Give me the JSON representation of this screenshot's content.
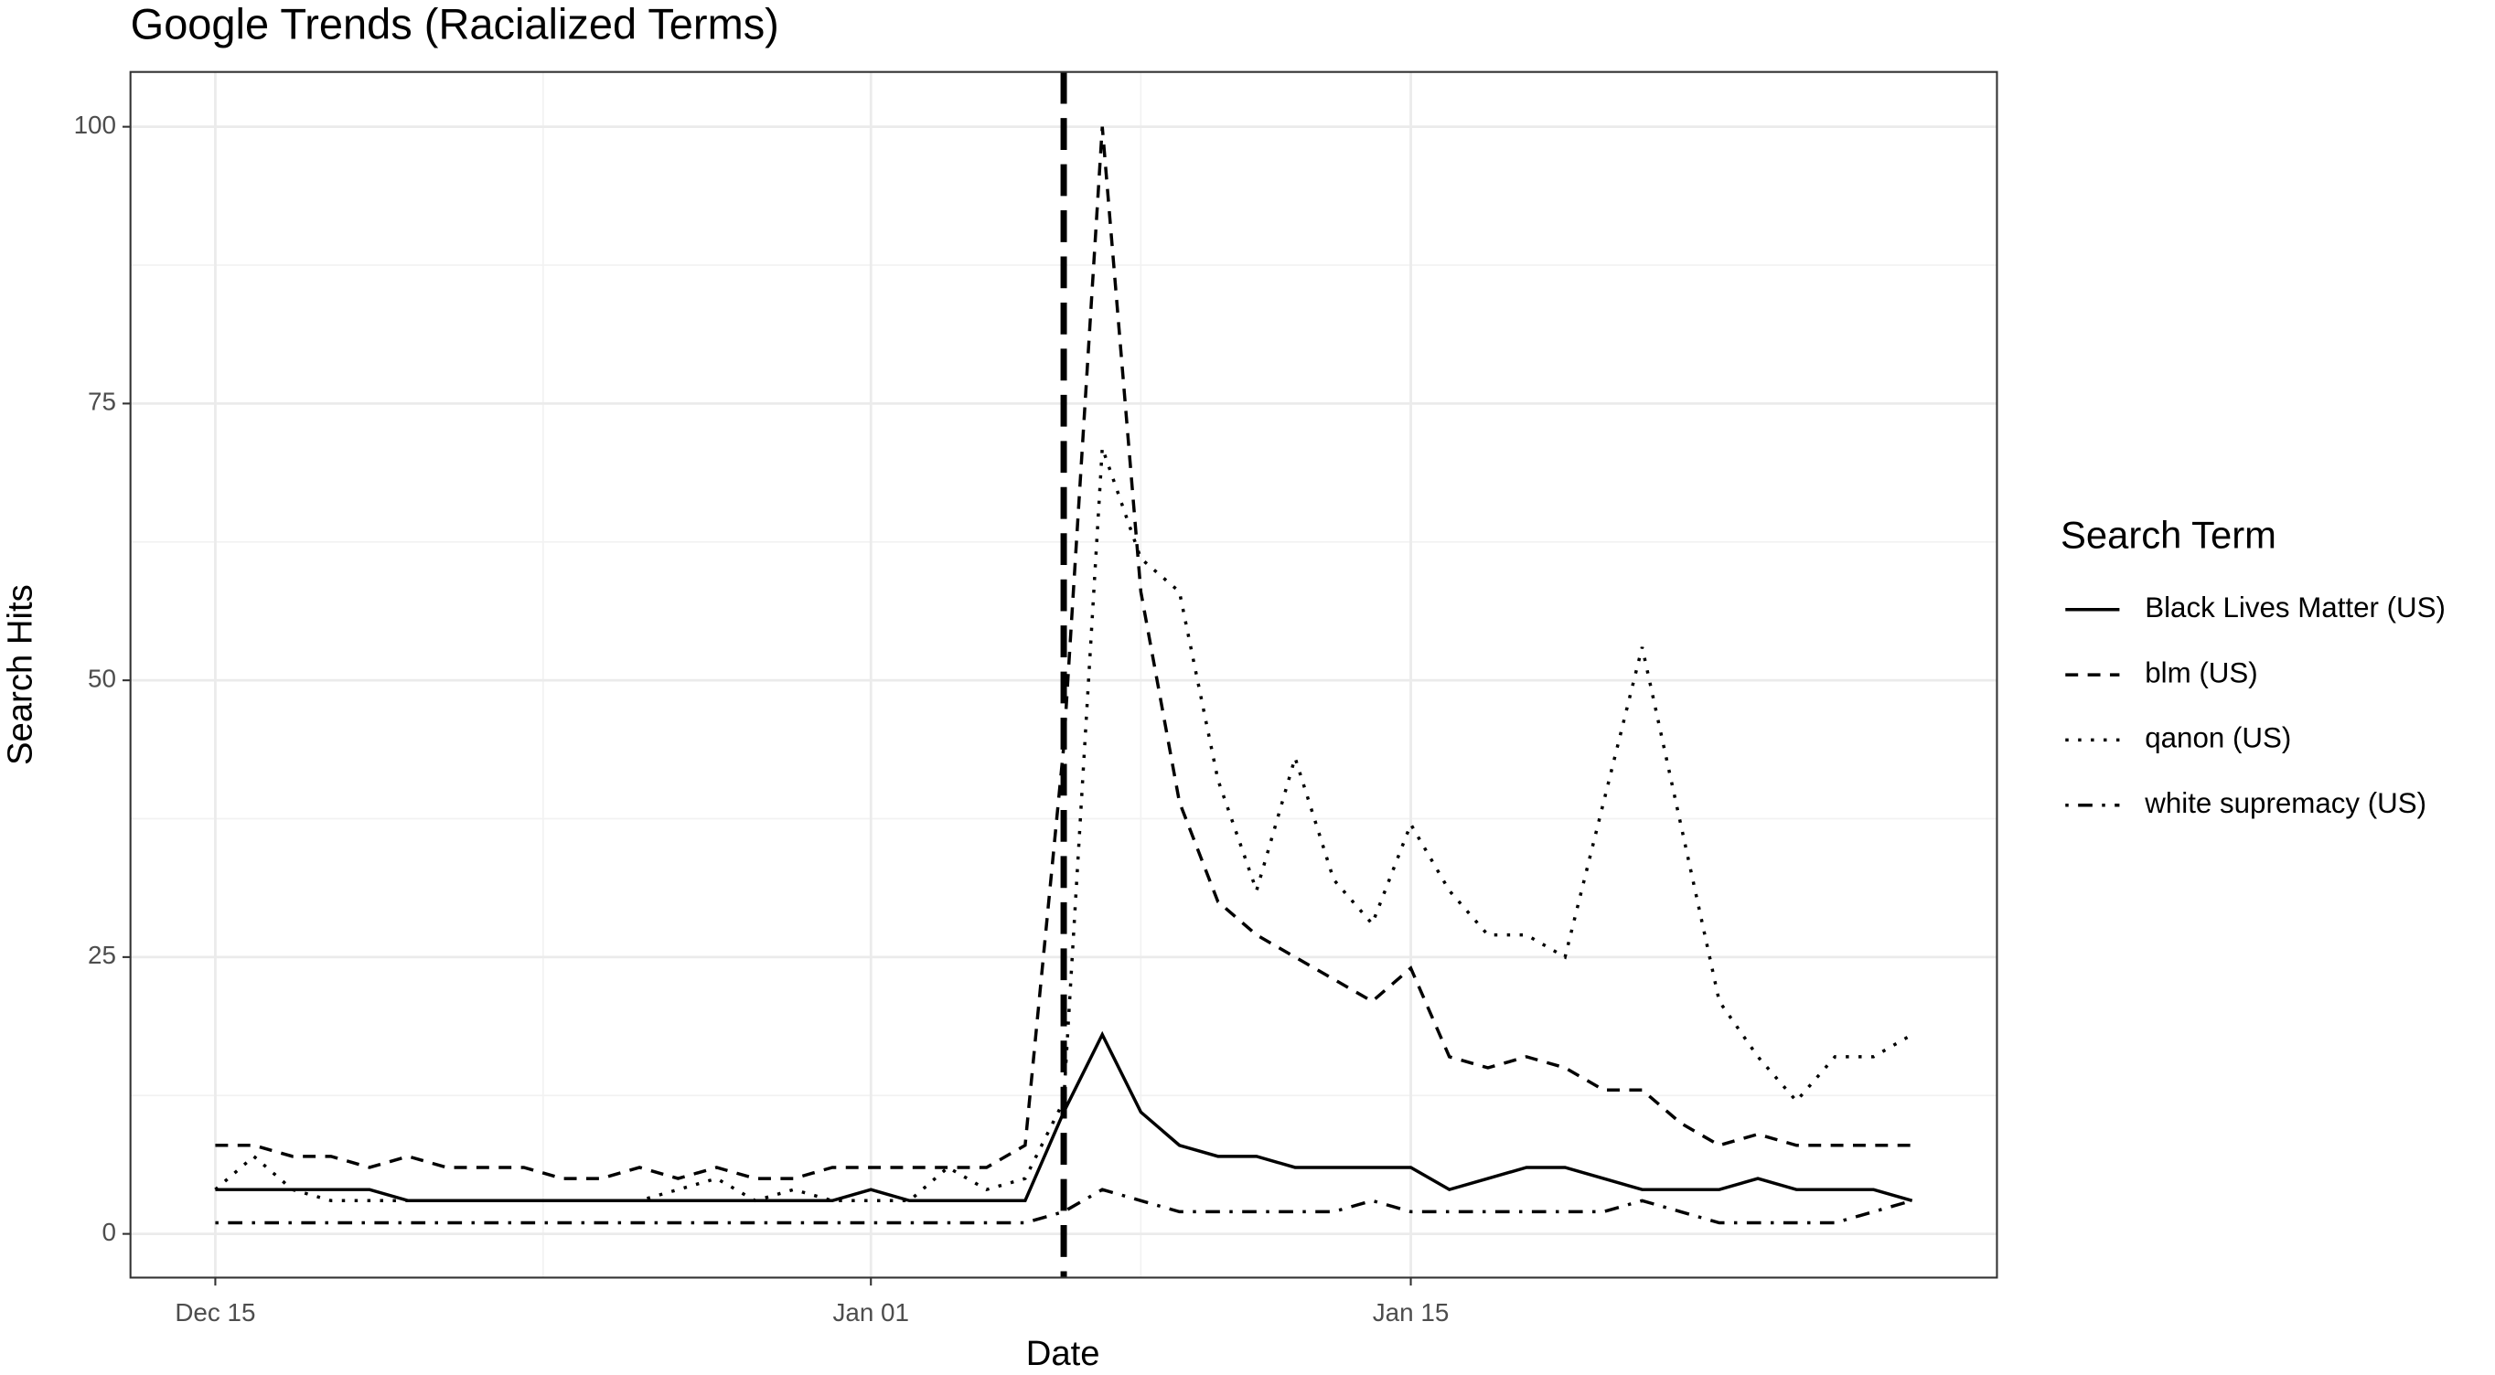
{
  "chart_data": {
    "type": "line",
    "title": "Google Trends (Racialized Terms)",
    "x_label": "Date",
    "y_label": "Search Hits",
    "legend_title": "Search Term",
    "legend_position": "right",
    "grid": true,
    "x": [
      "Dec 15",
      "Dec 16",
      "Dec 17",
      "Dec 18",
      "Dec 19",
      "Dec 20",
      "Dec 21",
      "Dec 22",
      "Dec 23",
      "Dec 24",
      "Dec 25",
      "Dec 26",
      "Dec 27",
      "Dec 28",
      "Dec 29",
      "Dec 30",
      "Dec 31",
      "Jan 01",
      "Jan 02",
      "Jan 03",
      "Jan 04",
      "Jan 05",
      "Jan 06",
      "Jan 07",
      "Jan 08",
      "Jan 09",
      "Jan 10",
      "Jan 11",
      "Jan 12",
      "Jan 13",
      "Jan 14",
      "Jan 15",
      "Jan 16",
      "Jan 17",
      "Jan 18",
      "Jan 19",
      "Jan 20",
      "Jan 21",
      "Jan 22",
      "Jan 23",
      "Jan 24",
      "Jan 25",
      "Jan 26",
      "Jan 27",
      "Jan 28"
    ],
    "xticks": [
      "Dec 15",
      "Jan 01",
      "Jan 15"
    ],
    "ylim": [
      -3.95,
      104.95
    ],
    "yticks": [
      0,
      25,
      50,
      75,
      100
    ],
    "vline": {
      "x": "Jan 06",
      "style": "dashed",
      "color": "#000000"
    },
    "series": [
      {
        "name": "Black Lives Matter (US)",
        "color": "#000000",
        "dash": "solid",
        "values": [
          4,
          4,
          4,
          4,
          4,
          3,
          3,
          3,
          3,
          3,
          3,
          3,
          3,
          3,
          3,
          3,
          3,
          4,
          3,
          3,
          3,
          3,
          11,
          18,
          11,
          8,
          7,
          7,
          6,
          6,
          6,
          6,
          4,
          5,
          6,
          6,
          5,
          4,
          4,
          4,
          5,
          4,
          4,
          4,
          3
        ]
      },
      {
        "name": "blm (US)",
        "color": "#000000",
        "dash": "dashed",
        "values": [
          8,
          8,
          7,
          7,
          6,
          7,
          6,
          6,
          6,
          5,
          5,
          6,
          5,
          6,
          5,
          5,
          6,
          6,
          6,
          6,
          6,
          8,
          44,
          100,
          58,
          39,
          30,
          27,
          25,
          23,
          21,
          24,
          16,
          15,
          16,
          15,
          13,
          13,
          10,
          8,
          9,
          8,
          8,
          8,
          8
        ]
      },
      {
        "name": "qanon (US)",
        "color": "#000000",
        "dash": "dotted",
        "values": [
          4,
          7,
          4,
          3,
          3,
          3,
          3,
          3,
          3,
          3,
          3,
          3,
          4,
          5,
          3,
          4,
          3,
          3,
          3,
          6,
          4,
          5,
          12,
          71,
          61,
          58,
          41,
          31,
          43,
          32,
          28,
          37,
          31,
          27,
          27,
          25,
          39,
          53,
          37,
          21,
          16,
          12,
          16,
          16,
          18
        ]
      },
      {
        "name": "white supremacy (US)",
        "color": "#000000",
        "dash": "dotdash",
        "values": [
          1,
          1,
          1,
          1,
          1,
          1,
          1,
          1,
          1,
          1,
          1,
          1,
          1,
          1,
          1,
          1,
          1,
          1,
          1,
          1,
          1,
          1,
          2,
          4,
          3,
          2,
          2,
          2,
          2,
          2,
          3,
          2,
          2,
          2,
          2,
          2,
          2,
          3,
          2,
          1,
          1,
          1,
          1,
          2,
          3
        ]
      }
    ]
  }
}
